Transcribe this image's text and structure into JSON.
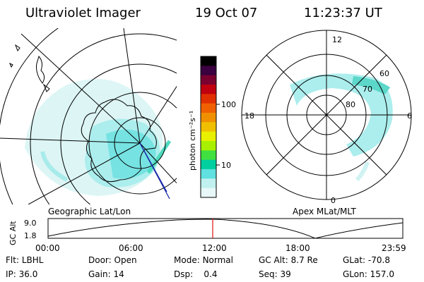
{
  "header": {
    "instrument": "Ultraviolet Imager",
    "date": "19 Oct 07",
    "time": "11:23:37 UT"
  },
  "colorbar": {
    "unit_label": "photon cm⁻²s⁻¹",
    "tick_labels": [
      "100",
      "10"
    ],
    "colors": [
      "#000000",
      "#3a0040",
      "#7a0030",
      "#c00010",
      "#e03000",
      "#f06000",
      "#f09000",
      "#f0c000",
      "#e8f000",
      "#a8f000",
      "#40e040",
      "#00d0a0",
      "#60e0e0",
      "#c0f0f0",
      "#e8f8f8"
    ]
  },
  "left_map": {
    "caption": "Geographic Lat/Lon"
  },
  "right_map": {
    "caption": "Apex MLat/MLT",
    "mlt_labels": {
      "top": "12",
      "bottom": "0",
      "left": "18",
      "right": "6"
    },
    "mlat_labels": [
      "60",
      "70",
      "80"
    ]
  },
  "altitude_plot": {
    "ylabel": "GC Alt",
    "yticks": [
      "9.0",
      "1.8"
    ],
    "xticks": [
      "00:00",
      "06:00",
      "12:00",
      "18:00",
      "23:59"
    ]
  },
  "info": {
    "filter": {
      "label": "Flt:",
      "value": "LBHL"
    },
    "ip": {
      "label": "IP:",
      "value": "36.0"
    },
    "door": {
      "label": "Door:",
      "value": "Open"
    },
    "gain": {
      "label": "Gain:",
      "value": "14"
    },
    "mode": {
      "label": "Mode:",
      "value": "Normal"
    },
    "dsp": {
      "label": "Dsp:",
      "value": "0.4"
    },
    "gc_alt": {
      "label": "GC Alt:",
      "value": "8.7 Re"
    },
    "seq": {
      "label": "Seq:",
      "value": "39"
    },
    "glat": {
      "label": "GLat:",
      "value": "-70.8"
    },
    "glon": {
      "label": "GLon:",
      "value": "157.0"
    }
  }
}
